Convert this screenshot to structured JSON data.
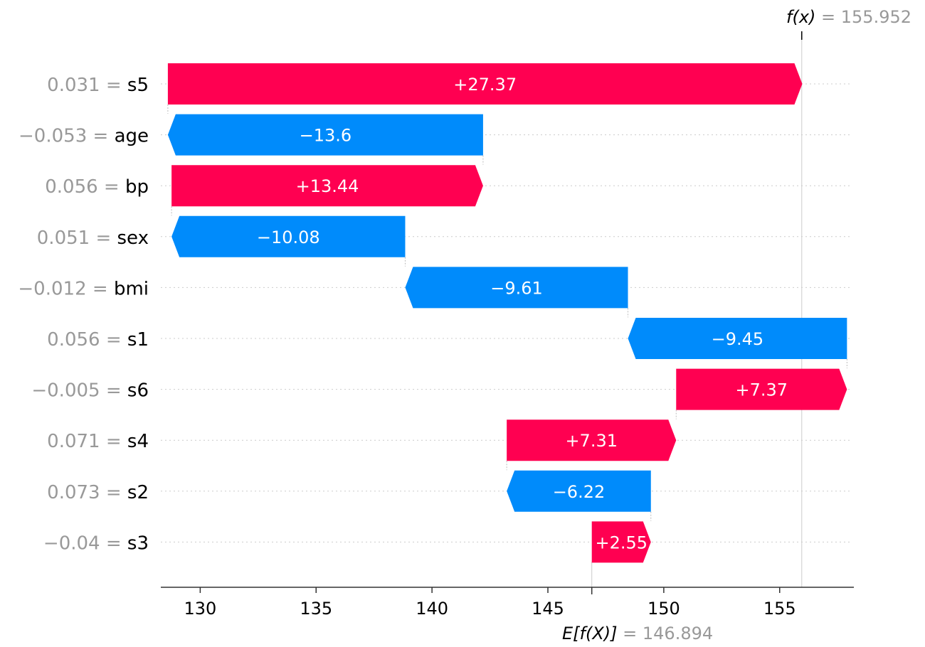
{
  "chart_data": {
    "type": "waterfall",
    "fx": {
      "label": "f(x)",
      "sep": " = ",
      "value": "155.952"
    },
    "efx": {
      "label": "E[f(X)]",
      "sep": " = ",
      "value": "146.894"
    },
    "base_value": 146.894,
    "final_value": 155.952,
    "xlim": [
      128.3,
      158.2
    ],
    "xticks": [
      130,
      135,
      140,
      145,
      150,
      155
    ],
    "features": [
      {
        "value": "0.031",
        "name": "s5",
        "contribution": 27.37,
        "label": "+27.37"
      },
      {
        "value": "−0.053",
        "name": "age",
        "contribution": -13.6,
        "label": "−13.6"
      },
      {
        "value": "0.056",
        "name": "bp",
        "contribution": 13.44,
        "label": "+13.44"
      },
      {
        "value": "0.051",
        "name": "sex",
        "contribution": -10.08,
        "label": "−10.08"
      },
      {
        "value": "−0.012",
        "name": "bmi",
        "contribution": -9.61,
        "label": "−9.61"
      },
      {
        "value": "0.056",
        "name": "s1",
        "contribution": -9.45,
        "label": "−9.45"
      },
      {
        "value": "−0.005",
        "name": "s6",
        "contribution": 7.37,
        "label": "+7.37"
      },
      {
        "value": "0.071",
        "name": "s4",
        "contribution": 7.31,
        "label": "+7.31"
      },
      {
        "value": "0.073",
        "name": "s2",
        "contribution": -6.22,
        "label": "−6.22"
      },
      {
        "value": "−0.04",
        "name": "s3",
        "contribution": 2.55,
        "label": "+2.55"
      }
    ],
    "colors": {
      "positive": "#ff0051",
      "negative": "#008bfb",
      "muted": "#999999"
    }
  }
}
